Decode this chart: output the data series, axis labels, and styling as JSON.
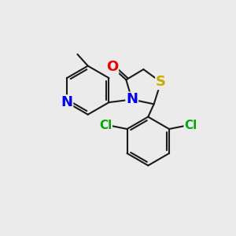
{
  "bg_color": "#ebebeb",
  "bond_color": "#1a1a1a",
  "bond_width": 1.5,
  "atom_colors": {
    "N": "#0000ee",
    "S": "#ccaa00",
    "O": "#ee0000",
    "Cl": "#00aa00",
    "C": "#1a1a1a"
  },
  "font_size": 11,
  "figsize": [
    3.0,
    3.0
  ],
  "dpi": 100
}
